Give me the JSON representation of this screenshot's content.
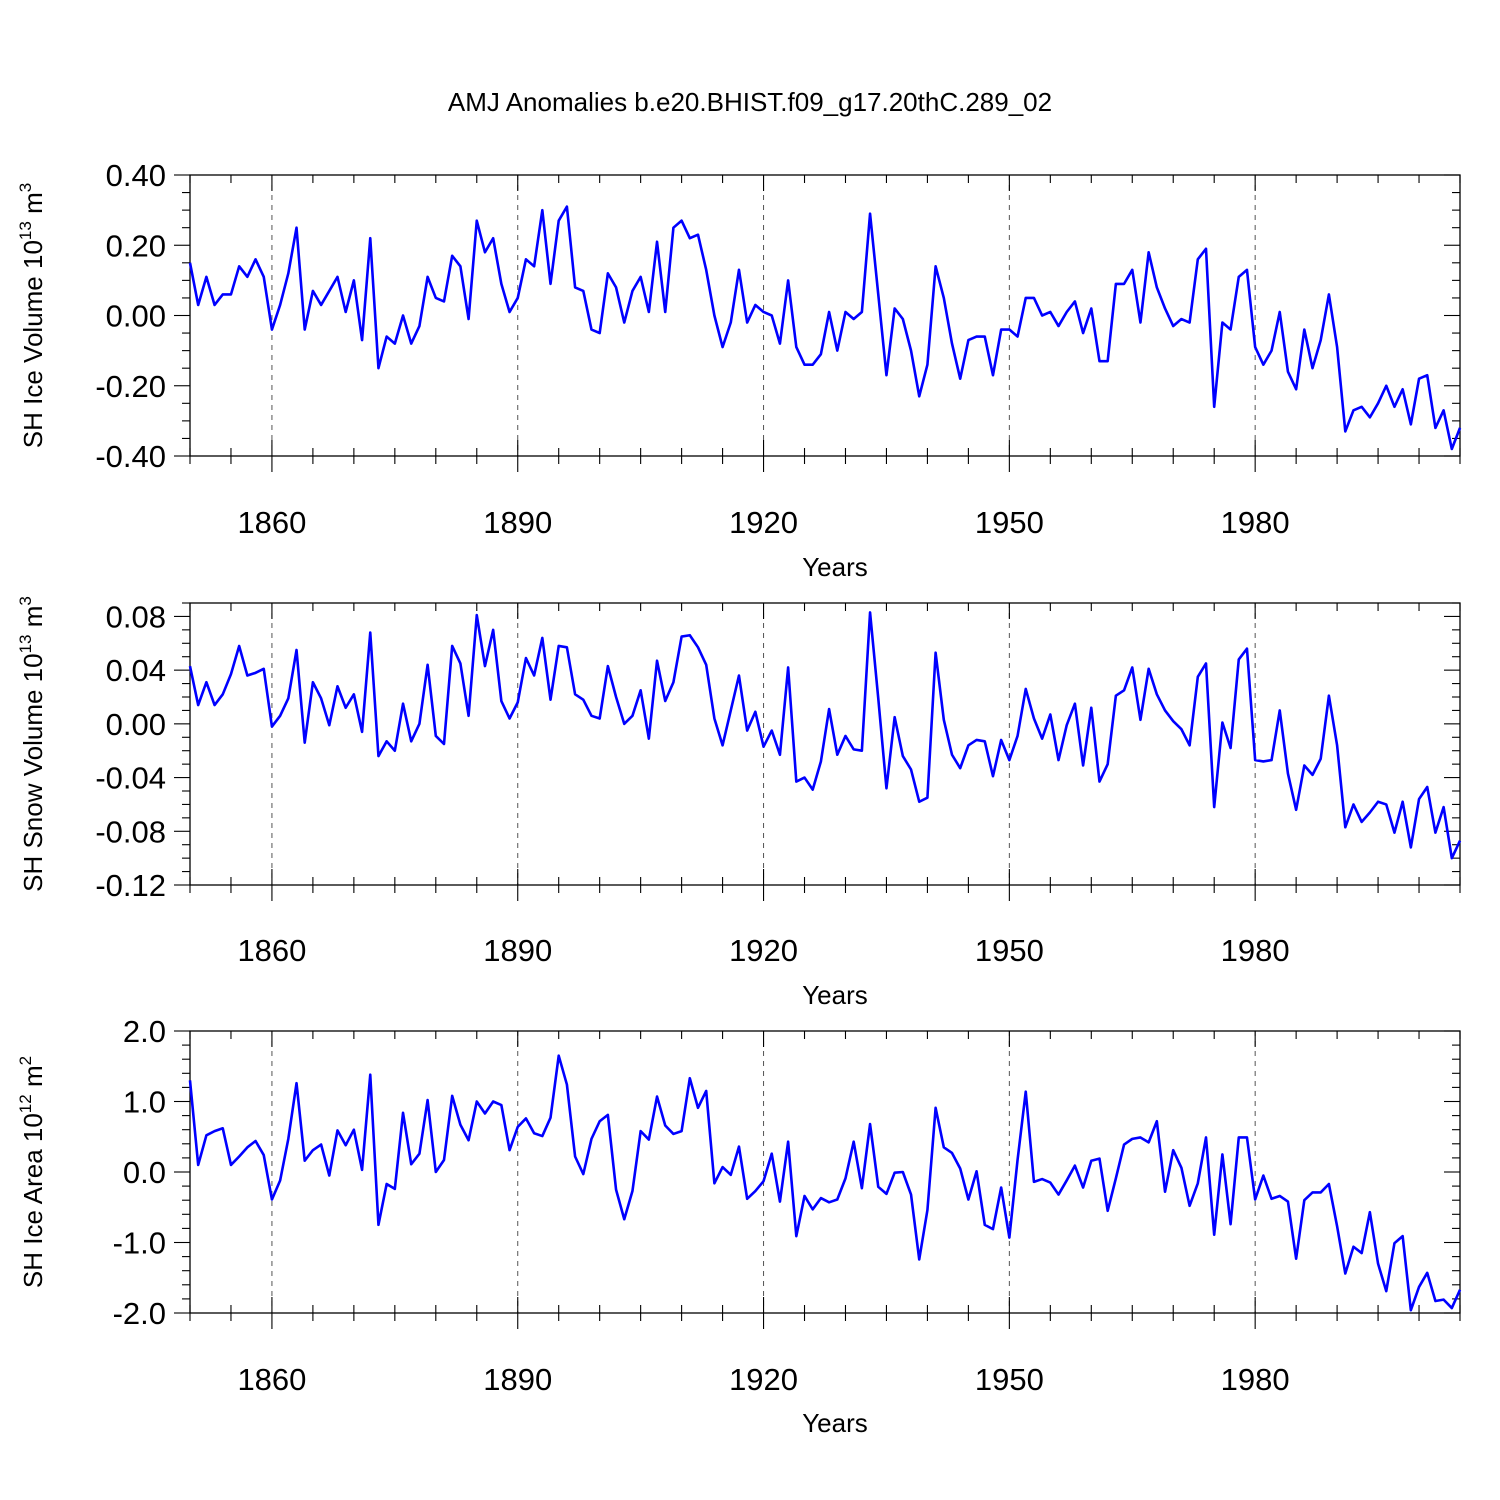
{
  "figure": {
    "title": "AMJ Anomalies b.e20.BHIST.f09_g17.20thC.289_02"
  },
  "colors": {
    "series": "#0000ff",
    "axis": "#000000",
    "grid": "#555555"
  },
  "chart_data": [
    {
      "type": "line",
      "ylabel_main": "SH Ice Volume 10",
      "ylabel_exp": "13",
      "ylabel_unit": " m",
      "ylabel_unit_exp": "3",
      "xlabel": "Years",
      "xlim": [
        1850,
        2005
      ],
      "ylim": [
        -0.4,
        0.4
      ],
      "xticks": [
        1860,
        1890,
        1920,
        1950,
        1980
      ],
      "xtick_labels": [
        "1860",
        "1890",
        "1920",
        "1950",
        "1980"
      ],
      "yticks": [
        -0.4,
        -0.2,
        0.0,
        0.2,
        0.4
      ],
      "ytick_labels": [
        "-0.40",
        "-0.20",
        "0.00",
        "0.20",
        "0.40"
      ],
      "yminor": 0.05,
      "grid_x": true,
      "x_start": 1850,
      "series": [
        {
          "name": "SH Ice Volume",
          "values": [
            0.15,
            0.03,
            0.11,
            0.03,
            0.06,
            0.06,
            0.14,
            0.11,
            0.16,
            0.11,
            -0.04,
            0.03,
            0.12,
            0.25,
            -0.04,
            0.07,
            0.03,
            0.07,
            0.11,
            0.01,
            0.1,
            -0.07,
            0.22,
            -0.15,
            -0.06,
            -0.08,
            0.0,
            -0.08,
            -0.03,
            0.11,
            0.05,
            0.04,
            0.17,
            0.14,
            -0.01,
            0.27,
            0.18,
            0.22,
            0.09,
            0.01,
            0.05,
            0.16,
            0.14,
            0.3,
            0.09,
            0.27,
            0.31,
            0.08,
            0.07,
            -0.04,
            -0.05,
            0.12,
            0.08,
            -0.02,
            0.07,
            0.11,
            0.01,
            0.21,
            0.01,
            0.25,
            0.27,
            0.22,
            0.23,
            0.13,
            0.0,
            -0.09,
            -0.02,
            0.13,
            -0.02,
            0.03,
            0.01,
            0.0,
            -0.08,
            0.1,
            -0.09,
            -0.14,
            -0.14,
            -0.11,
            0.01,
            -0.1,
            0.01,
            -0.01,
            0.01,
            0.29,
            0.06,
            -0.17,
            0.02,
            -0.01,
            -0.1,
            -0.23,
            -0.14,
            0.14,
            0.05,
            -0.08,
            -0.18,
            -0.07,
            -0.06,
            -0.06,
            -0.17,
            -0.04,
            -0.04,
            -0.06,
            0.05,
            0.05,
            0.0,
            0.01,
            -0.03,
            0.01,
            0.04,
            -0.05,
            0.02,
            -0.13,
            -0.13,
            0.09,
            0.09,
            0.13,
            -0.02,
            0.18,
            0.08,
            0.02,
            -0.03,
            -0.01,
            -0.02,
            0.16,
            0.19,
            -0.26,
            -0.02,
            -0.04,
            0.11,
            0.13,
            -0.09,
            -0.14,
            -0.1,
            0.01,
            -0.16,
            -0.21,
            -0.04,
            -0.15,
            -0.07,
            0.06,
            -0.09,
            -0.33,
            -0.27,
            -0.26,
            -0.29,
            -0.25,
            -0.2,
            -0.26,
            -0.21,
            -0.31,
            -0.18,
            -0.17,
            -0.32,
            -0.27,
            -0.38,
            -0.32
          ]
        }
      ]
    },
    {
      "type": "line",
      "ylabel_main": "SH Snow Volume 10",
      "ylabel_exp": "13",
      "ylabel_unit": " m",
      "ylabel_unit_exp": "3",
      "xlabel": "Years",
      "xlim": [
        1850,
        2005
      ],
      "ylim": [
        -0.12,
        0.09
      ],
      "xticks": [
        1860,
        1890,
        1920,
        1950,
        1980
      ],
      "xtick_labels": [
        "1860",
        "1890",
        "1920",
        "1950",
        "1980"
      ],
      "yticks": [
        -0.12,
        -0.08,
        -0.04,
        0.0,
        0.04,
        0.08
      ],
      "ytick_labels": [
        "-0.12",
        "-0.08",
        "-0.04",
        "0.00",
        "0.04",
        "0.08"
      ],
      "yminor": 0.01,
      "grid_x": true,
      "x_start": 1850,
      "series": [
        {
          "name": "SH Snow Volume",
          "values": [
            0.043,
            0.014,
            0.031,
            0.014,
            0.022,
            0.037,
            0.058,
            0.036,
            0.038,
            0.041,
            -0.002,
            0.006,
            0.019,
            0.055,
            -0.014,
            0.031,
            0.019,
            -0.001,
            0.028,
            0.012,
            0.022,
            -0.006,
            0.068,
            -0.024,
            -0.013,
            -0.02,
            0.015,
            -0.013,
            0.0,
            0.044,
            -0.009,
            -0.015,
            0.058,
            0.045,
            0.006,
            0.081,
            0.043,
            0.07,
            0.017,
            0.004,
            0.016,
            0.049,
            0.036,
            0.064,
            0.018,
            0.058,
            0.057,
            0.022,
            0.018,
            0.006,
            0.004,
            0.043,
            0.02,
            0.0,
            0.006,
            0.025,
            -0.011,
            0.047,
            0.017,
            0.031,
            0.065,
            0.066,
            0.057,
            0.044,
            0.004,
            -0.016,
            0.01,
            0.036,
            -0.005,
            0.009,
            -0.017,
            -0.005,
            -0.023,
            0.042,
            -0.043,
            -0.04,
            -0.049,
            -0.028,
            0.011,
            -0.023,
            -0.009,
            -0.019,
            -0.02,
            0.083,
            0.019,
            -0.048,
            0.005,
            -0.024,
            -0.034,
            -0.058,
            -0.055,
            0.053,
            0.003,
            -0.023,
            -0.033,
            -0.016,
            -0.012,
            -0.013,
            -0.039,
            -0.012,
            -0.027,
            -0.009,
            0.026,
            0.004,
            -0.011,
            0.007,
            -0.027,
            -0.001,
            0.015,
            -0.031,
            0.012,
            -0.043,
            -0.03,
            0.021,
            0.025,
            0.042,
            0.003,
            0.041,
            0.022,
            0.01,
            0.002,
            -0.004,
            -0.016,
            0.035,
            0.045,
            -0.062,
            0.001,
            -0.018,
            0.048,
            0.056,
            -0.027,
            -0.028,
            -0.027,
            0.01,
            -0.037,
            -0.064,
            -0.031,
            -0.038,
            -0.026,
            0.021,
            -0.016,
            -0.077,
            -0.06,
            -0.073,
            -0.066,
            -0.058,
            -0.06,
            -0.081,
            -0.058,
            -0.092,
            -0.056,
            -0.047,
            -0.081,
            -0.062,
            -0.1,
            -0.087
          ]
        }
      ]
    },
    {
      "type": "line",
      "ylabel_main": "SH Ice Area 10",
      "ylabel_exp": "12",
      "ylabel_unit": " m",
      "ylabel_unit_exp": "2",
      "xlabel": "Years",
      "xlim": [
        1850,
        2005
      ],
      "ylim": [
        -2.0,
        2.0
      ],
      "xticks": [
        1860,
        1890,
        1920,
        1950,
        1980
      ],
      "xtick_labels": [
        "1860",
        "1890",
        "1920",
        "1950",
        "1980"
      ],
      "yticks": [
        -2.0,
        -1.0,
        0.0,
        1.0,
        2.0
      ],
      "ytick_labels": [
        "-2.0",
        "-1.0",
        "0.0",
        "1.0",
        "2.0"
      ],
      "yminor": 0.2,
      "grid_x": true,
      "x_start": 1850,
      "series": [
        {
          "name": "SH Ice Area",
          "values": [
            1.3,
            0.1,
            0.52,
            0.58,
            0.62,
            0.1,
            0.22,
            0.35,
            0.44,
            0.24,
            -0.39,
            -0.12,
            0.47,
            1.26,
            0.16,
            0.31,
            0.39,
            -0.05,
            0.59,
            0.38,
            0.6,
            0.03,
            1.38,
            -0.75,
            -0.17,
            -0.24,
            0.84,
            0.11,
            0.26,
            1.02,
            0.0,
            0.17,
            1.08,
            0.67,
            0.45,
            1.0,
            0.83,
            1.0,
            0.95,
            0.31,
            0.64,
            0.76,
            0.55,
            0.51,
            0.77,
            1.65,
            1.24,
            0.22,
            -0.03,
            0.47,
            0.72,
            0.81,
            -0.25,
            -0.67,
            -0.27,
            0.58,
            0.46,
            1.07,
            0.66,
            0.54,
            0.58,
            1.33,
            0.91,
            1.15,
            -0.16,
            0.07,
            -0.04,
            0.36,
            -0.38,
            -0.27,
            -0.13,
            0.26,
            -0.42,
            0.43,
            -0.91,
            -0.34,
            -0.53,
            -0.37,
            -0.43,
            -0.39,
            -0.09,
            0.43,
            -0.23,
            0.68,
            -0.21,
            -0.31,
            -0.01,
            0.0,
            -0.32,
            -1.24,
            -0.54,
            0.91,
            0.35,
            0.27,
            0.05,
            -0.39,
            0.01,
            -0.75,
            -0.81,
            -0.22,
            -0.93,
            0.17,
            1.14,
            -0.14,
            -0.1,
            -0.15,
            -0.32,
            -0.12,
            0.09,
            -0.22,
            0.16,
            0.19,
            -0.55,
            -0.09,
            0.39,
            0.47,
            0.49,
            0.42,
            0.72,
            -0.28,
            0.31,
            0.06,
            -0.48,
            -0.16,
            0.49,
            -0.89,
            0.25,
            -0.74,
            0.49,
            0.49,
            -0.39,
            -0.05,
            -0.38,
            -0.34,
            -0.42,
            -1.23,
            -0.4,
            -0.29,
            -0.29,
            -0.17,
            -0.77,
            -1.44,
            -1.06,
            -1.15,
            -0.57,
            -1.3,
            -1.69,
            -1.01,
            -0.91,
            -1.96,
            -1.63,
            -1.43,
            -1.83,
            -1.81,
            -1.93,
            -1.67
          ]
        }
      ]
    }
  ]
}
